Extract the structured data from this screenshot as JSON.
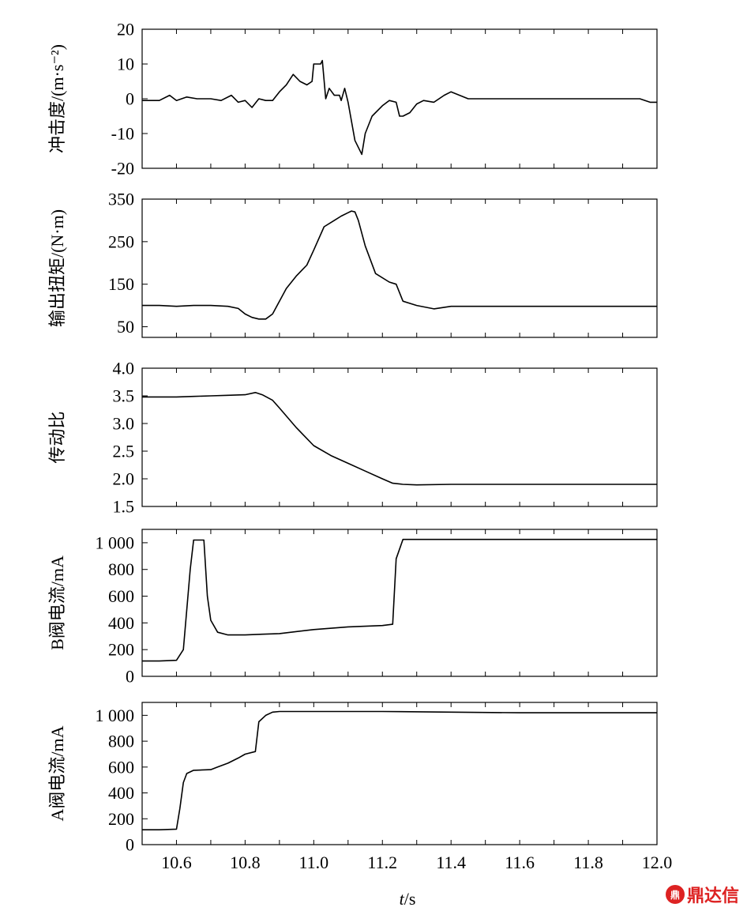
{
  "chart_data": [
    {
      "type": "line",
      "ylabel": "冲击度/(m·s⁻²)",
      "ylim": [
        -20,
        20
      ],
      "yticks": [
        -20,
        -10,
        0,
        10,
        20
      ],
      "xlim": [
        10.5,
        12.0
      ],
      "series": [
        {
          "x": [
            10.5,
            10.55,
            10.58,
            10.6,
            10.63,
            10.66,
            10.7,
            10.73,
            10.76,
            10.78,
            10.8,
            10.82,
            10.84,
            10.86,
            10.88,
            10.9,
            10.92,
            10.94,
            10.96,
            10.98,
            10.995,
            11.0,
            11.02,
            11.025,
            11.035,
            11.045,
            11.06,
            11.075,
            11.08,
            11.09,
            11.1,
            11.12,
            11.14,
            11.15,
            11.17,
            11.2,
            11.22,
            11.24,
            11.25,
            11.26,
            11.28,
            11.3,
            11.32,
            11.35,
            11.38,
            11.4,
            11.45,
            11.5,
            11.55,
            11.6,
            11.65,
            11.7,
            11.75,
            11.8,
            11.85,
            11.9,
            11.93,
            11.95,
            11.98,
            12.0
          ],
          "y": [
            -0.5,
            -0.5,
            1,
            -0.5,
            0.5,
            0,
            0,
            -0.5,
            1,
            -1,
            -0.5,
            -2.5,
            0,
            -0.5,
            -0.5,
            2,
            4,
            7,
            5,
            4,
            5,
            10,
            10,
            11,
            0,
            3,
            1,
            1,
            -0.5,
            3,
            -1,
            -12,
            -16,
            -10,
            -5,
            -2,
            -0.5,
            -1,
            -5,
            -5,
            -4,
            -1.5,
            -0.5,
            -1,
            1,
            2,
            0,
            0,
            0,
            0,
            0,
            0,
            0,
            0,
            0,
            0,
            0,
            0,
            -1,
            -1
          ]
        }
      ]
    },
    {
      "type": "line",
      "ylabel": "输出扭矩/(N·m)",
      "ylim": [
        25,
        350
      ],
      "yticks": [
        50,
        150,
        250,
        350
      ],
      "xlim": [
        10.5,
        12.0
      ],
      "series": [
        {
          "x": [
            10.5,
            10.55,
            10.6,
            10.65,
            10.7,
            10.75,
            10.78,
            10.8,
            10.82,
            10.84,
            10.86,
            10.88,
            10.9,
            10.92,
            10.95,
            10.98,
            11.0,
            11.03,
            11.06,
            11.08,
            11.1,
            11.11,
            11.12,
            11.13,
            11.15,
            11.18,
            11.22,
            11.24,
            11.26,
            11.3,
            11.35,
            11.4,
            11.5,
            11.6,
            11.7,
            11.8,
            11.9,
            12.0
          ],
          "y": [
            100,
            100,
            98,
            100,
            100,
            98,
            93,
            80,
            72,
            68,
            68,
            80,
            110,
            140,
            170,
            195,
            230,
            285,
            300,
            310,
            318,
            322,
            320,
            300,
            240,
            175,
            155,
            150,
            110,
            100,
            92,
            98,
            98,
            98,
            98,
            98,
            98,
            98
          ]
        }
      ]
    },
    {
      "type": "line",
      "ylabel": "传动比",
      "ylim": [
        1.5,
        4.0
      ],
      "yticks": [
        1.5,
        2.0,
        2.5,
        3.0,
        3.5,
        4.0
      ],
      "xlim": [
        10.5,
        12.0
      ],
      "series": [
        {
          "x": [
            10.5,
            10.55,
            10.6,
            10.65,
            10.7,
            10.75,
            10.8,
            10.83,
            10.85,
            10.88,
            10.9,
            10.95,
            11.0,
            11.05,
            11.1,
            11.15,
            11.2,
            11.23,
            11.26,
            11.3,
            11.4,
            11.5,
            11.6,
            11.7,
            11.8,
            11.9,
            12.0
          ],
          "y": [
            3.48,
            3.48,
            3.48,
            3.49,
            3.5,
            3.51,
            3.52,
            3.56,
            3.52,
            3.42,
            3.28,
            2.92,
            2.6,
            2.42,
            2.28,
            2.14,
            2.0,
            1.92,
            1.9,
            1.89,
            1.9,
            1.9,
            1.9,
            1.9,
            1.9,
            1.9,
            1.9
          ]
        }
      ]
    },
    {
      "type": "line",
      "ylabel": "B阀电流/mA",
      "ylim": [
        0,
        1100
      ],
      "yticks": [
        0,
        200,
        400,
        600,
        800,
        1000
      ],
      "ytick_labels": [
        "0",
        "200",
        "400",
        "600",
        "800",
        "1 000"
      ],
      "xlim": [
        10.5,
        12.0
      ],
      "series": [
        {
          "x": [
            10.5,
            10.55,
            10.6,
            10.62,
            10.64,
            10.65,
            10.68,
            10.69,
            10.7,
            10.72,
            10.75,
            10.8,
            10.85,
            10.9,
            11.0,
            11.1,
            11.2,
            11.23,
            11.24,
            11.26,
            11.3,
            11.4,
            11.6,
            11.8,
            12.0
          ],
          "y": [
            115,
            115,
            120,
            200,
            800,
            1020,
            1020,
            600,
            420,
            330,
            310,
            310,
            315,
            320,
            350,
            370,
            380,
            390,
            880,
            1025,
            1025,
            1025,
            1025,
            1025,
            1025
          ]
        }
      ]
    },
    {
      "type": "line",
      "ylabel": "A阀电流/mA",
      "ylim": [
        0,
        1100
      ],
      "yticks": [
        0,
        200,
        400,
        600,
        800,
        1000
      ],
      "ytick_labels": [
        "0",
        "200",
        "400",
        "600",
        "800",
        "1 000"
      ],
      "xlabel": "t/s",
      "xlim": [
        10.5,
        12.0
      ],
      "xticks": [
        10.6,
        10.8,
        11.0,
        11.2,
        11.4,
        11.6,
        11.8,
        12.0
      ],
      "xtick_labels": [
        "10.6",
        "10.8",
        "11.0",
        "11.2",
        "11.4",
        "11.6",
        "11.8",
        "12.0"
      ],
      "series": [
        {
          "x": [
            10.5,
            10.55,
            10.6,
            10.61,
            10.62,
            10.63,
            10.65,
            10.7,
            10.72,
            10.75,
            10.78,
            10.8,
            10.83,
            10.84,
            10.86,
            10.88,
            10.9,
            11.0,
            11.2,
            11.4,
            11.6,
            11.8,
            12.0
          ],
          "y": [
            115,
            115,
            120,
            280,
            480,
            550,
            575,
            580,
            600,
            630,
            670,
            700,
            720,
            950,
            1000,
            1025,
            1030,
            1030,
            1030,
            1025,
            1020,
            1020,
            1020
          ]
        }
      ]
    }
  ],
  "watermark": {
    "logo_text": "鼎",
    "text": "鼎达信"
  }
}
